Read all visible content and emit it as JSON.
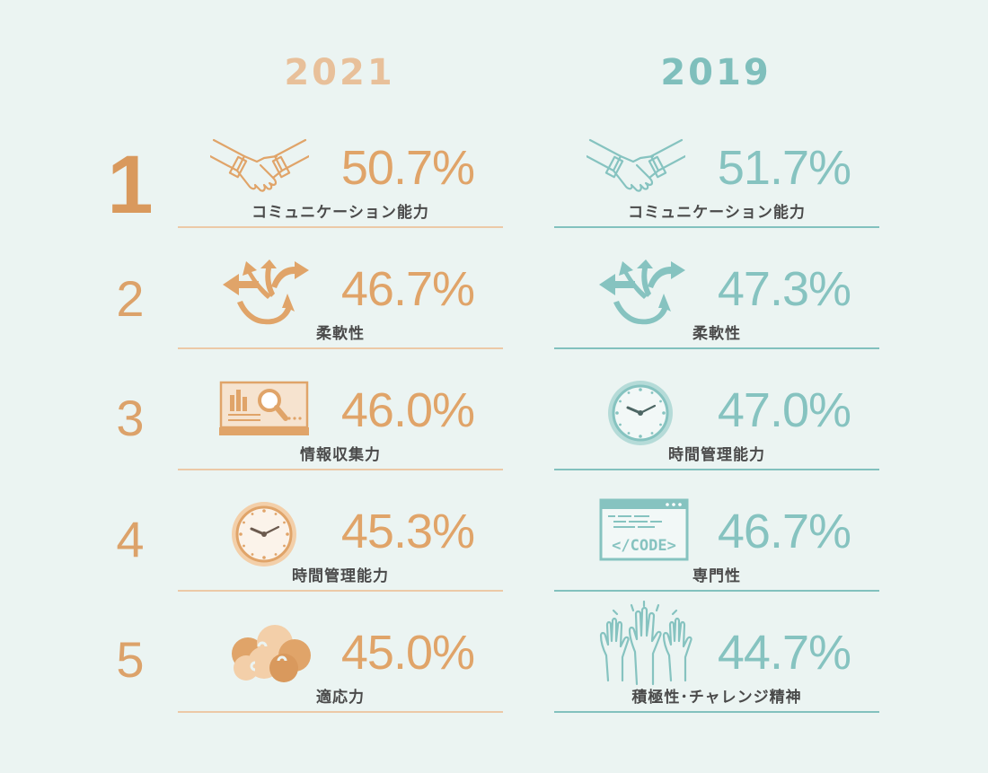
{
  "years": {
    "left": "2021",
    "right": "2019"
  },
  "ranks": [
    "1",
    "2",
    "3",
    "4",
    "5"
  ],
  "y2021": [
    {
      "pct": "50.7%",
      "label": "コミュニケーション能力",
      "icon": "handshake-icon"
    },
    {
      "pct": "46.7%",
      "label": "柔軟性",
      "icon": "branching-arrows-icon"
    },
    {
      "pct": "46.0%",
      "label": "情報収集力",
      "icon": "magnifier-chart-icon"
    },
    {
      "pct": "45.3%",
      "label": "時間管理能力",
      "icon": "clock-icon"
    },
    {
      "pct": "45.0%",
      "label": "適応力",
      "icon": "puzzle-cloud-icon"
    }
  ],
  "y2019": [
    {
      "pct": "51.7%",
      "label": "コミュニケーション能力",
      "icon": "handshake-icon"
    },
    {
      "pct": "47.3%",
      "label": "柔軟性",
      "icon": "branching-arrows-icon"
    },
    {
      "pct": "47.0%",
      "label": "時間管理能力",
      "icon": "clock-icon"
    },
    {
      "pct": "46.7%",
      "label": "専門性",
      "icon": "code-window-icon"
    },
    {
      "pct": "44.7%",
      "label": "積極性･チャレンジ精神",
      "icon": "raised-hands-icon"
    }
  ],
  "colors": {
    "orange": "#e0a469",
    "teal": "#86c3c0",
    "background": "#ebf4f2"
  }
}
